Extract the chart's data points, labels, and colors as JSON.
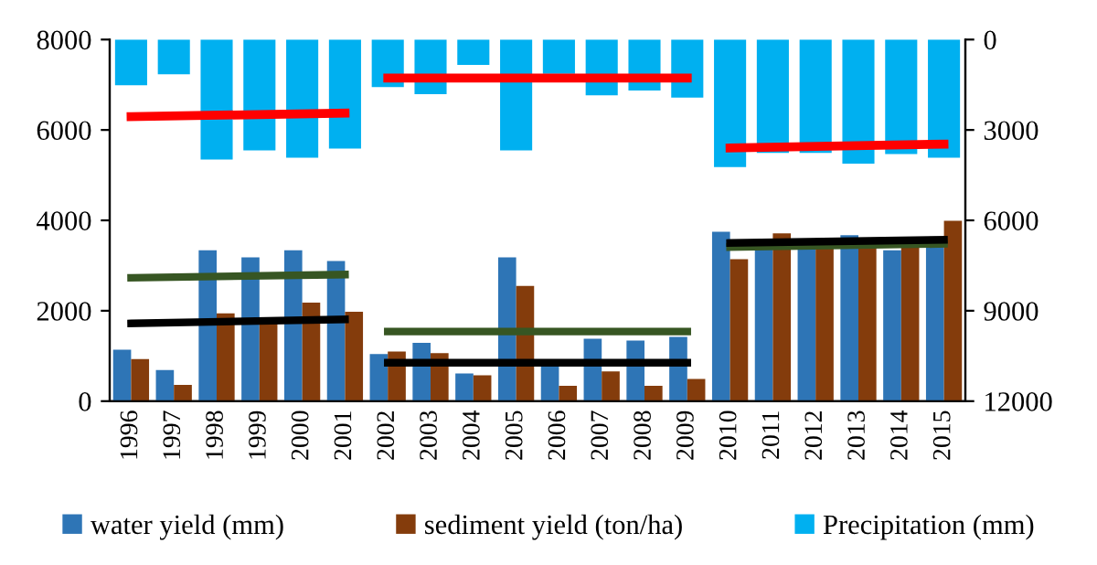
{
  "chart_data": {
    "type": "bar",
    "categories": [
      "1996",
      "1997",
      "1998",
      "1999",
      "2000",
      "2001",
      "2002",
      "2003",
      "2004",
      "2005",
      "2006",
      "2007",
      "2008",
      "2009",
      "2010",
      "2011",
      "2012",
      "2013",
      "2014",
      "2015"
    ],
    "series": [
      {
        "name": "water yield (mm)",
        "color": "#2e75b6",
        "values": [
          1140,
          690,
          3340,
          3180,
          3340,
          3100,
          1040,
          1290,
          610,
          3180,
          900,
          1380,
          1340,
          1420,
          3750,
          3450,
          3450,
          3670,
          3340,
          3450
        ]
      },
      {
        "name": "sediment yield (ton/ha)",
        "color": "#843c0c",
        "values": [
          930,
          360,
          1940,
          1770,
          2180,
          1980,
          1100,
          1060,
          570,
          2550,
          340,
          660,
          340,
          490,
          3140,
          3710,
          3450,
          3450,
          3450,
          3990
        ]
      },
      {
        "name": "Precipitation (mm)",
        "color": "#00b0f0",
        "axis": "y2",
        "values": [
          1520,
          1150,
          3980,
          3680,
          3920,
          3620,
          1580,
          1810,
          840,
          3680,
          1140,
          1850,
          1690,
          1930,
          4230,
          3760,
          3760,
          4120,
          3800,
          3920
        ]
      },
      {
        "type": "line",
        "color": "#ff0000",
        "axis": "y2",
        "values": [
          2560,
          null,
          null,
          null,
          null,
          2440,
          null,
          null,
          null,
          null,
          null,
          null,
          null,
          null,
          null,
          null,
          null,
          null,
          null,
          null
        ]
      },
      {
        "type": "line",
        "color": "#ff0000",
        "axis": "y2",
        "values": [
          null,
          null,
          null,
          null,
          null,
          null,
          1280,
          null,
          null,
          null,
          null,
          null,
          null,
          1280,
          null,
          null,
          null,
          null,
          null,
          null
        ]
      },
      {
        "type": "line",
        "color": "#ff0000",
        "axis": "y2",
        "values": [
          null,
          null,
          null,
          null,
          null,
          null,
          null,
          null,
          null,
          null,
          null,
          null,
          null,
          null,
          3600,
          null,
          null,
          null,
          null,
          3470
        ]
      },
      {
        "type": "line",
        "color": "#375623",
        "values": [
          2730,
          null,
          null,
          null,
          null,
          2800,
          null,
          null,
          null,
          null,
          null,
          null,
          null,
          null,
          null,
          null,
          null,
          null,
          null,
          null
        ]
      },
      {
        "type": "line",
        "color": "#375623",
        "values": [
          null,
          null,
          null,
          null,
          null,
          null,
          1540,
          null,
          null,
          null,
          null,
          null,
          null,
          1540,
          null,
          null,
          null,
          null,
          null,
          null
        ]
      },
      {
        "type": "line",
        "color": "#375623",
        "values": [
          null,
          null,
          null,
          null,
          null,
          null,
          null,
          null,
          null,
          null,
          null,
          null,
          null,
          null,
          3410,
          null,
          null,
          null,
          null,
          3480
        ]
      },
      {
        "type": "line",
        "color": "#000000",
        "values": [
          1720,
          null,
          null,
          null,
          null,
          1810,
          null,
          null,
          null,
          null,
          null,
          null,
          null,
          null,
          null,
          null,
          null,
          null,
          null,
          null
        ]
      },
      {
        "type": "line",
        "color": "#000000",
        "values": [
          null,
          null,
          null,
          null,
          null,
          null,
          850,
          null,
          null,
          null,
          null,
          null,
          null,
          850,
          null,
          null,
          null,
          null,
          null,
          null
        ]
      },
      {
        "type": "line",
        "color": "#000000",
        "values": [
          null,
          null,
          null,
          null,
          null,
          null,
          null,
          null,
          null,
          null,
          null,
          null,
          null,
          null,
          3500,
          null,
          null,
          null,
          null,
          3570
        ]
      }
    ],
    "ylim": [
      0,
      8000
    ],
    "yticks": [
      0,
      2000,
      4000,
      6000,
      8000
    ],
    "y2lim": [
      12000,
      0
    ],
    "y2ticks": [
      0,
      3000,
      6000,
      9000,
      12000
    ],
    "grid": false,
    "legend": "bottom"
  }
}
